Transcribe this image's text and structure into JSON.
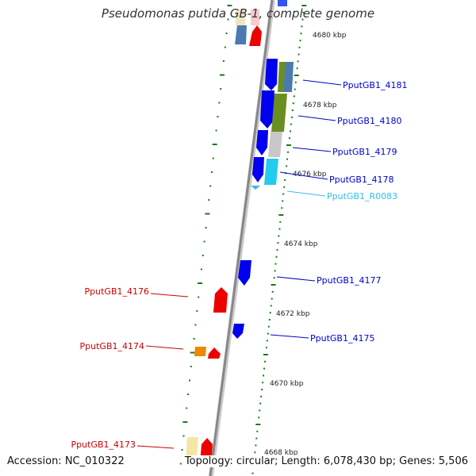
{
  "title": "Pseudomonas putida GB-1, complete genome",
  "accession": "Accession: NC_010322",
  "topology": "Topology: circular; Length: 6,078,430 bp; Genes: 5,506",
  "colors": {
    "backbone": "#999999",
    "tick": "#1a7a1a",
    "forward": "#0000ee",
    "reverse": "#ee0000",
    "rna": "#33bbee",
    "highlight_green": "#6b8e23",
    "highlight_gray": "#c0c0c0"
  },
  "scale_labels": [
    "4680 kbp",
    "4678 kbp",
    "4676 kbp",
    "4674 kbp",
    "4672 kbp",
    "4670 kbp",
    "4668 kbp"
  ],
  "right_labels": [
    {
      "text": "PputGB1_4181",
      "color": "#0000cc"
    },
    {
      "text": "PputGB1_4180",
      "color": "#0000cc"
    },
    {
      "text": "PputGB1_4179",
      "color": "#0000cc"
    },
    {
      "text": "PputGB1_4178",
      "color": "#0000cc"
    },
    {
      "text": "PputGB1_R0083",
      "color": "#33bbee"
    },
    {
      "text": "PputGB1_4177",
      "color": "#0000cc"
    },
    {
      "text": "PputGB1_4175",
      "color": "#0000cc"
    }
  ],
  "left_labels": [
    {
      "text": "PputGB1_4176",
      "color": "#cc0000"
    },
    {
      "text": "PputGB1_4174",
      "color": "#cc0000"
    },
    {
      "text": "PputGB1_4173",
      "color": "#cc0000"
    }
  ]
}
